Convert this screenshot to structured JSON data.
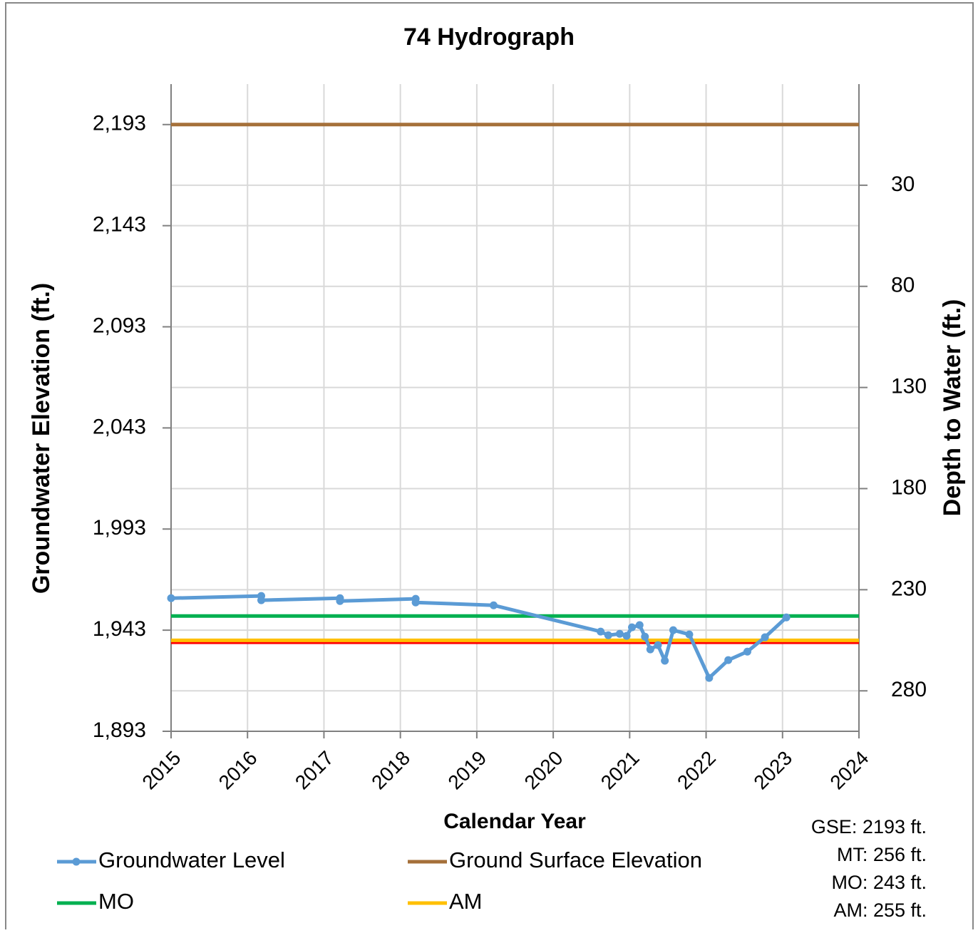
{
  "chart_data": {
    "type": "line",
    "title": "74 Hydrograph",
    "x_label": "Calendar Year",
    "y_label": "Groundwater Elevation (ft.)",
    "y2_label": "Depth to Water (ft.)",
    "xlim": [
      2015,
      2024
    ],
    "xticks": [
      2015,
      2016,
      2017,
      2018,
      2019,
      2020,
      2021,
      2022,
      2023,
      2024
    ],
    "ylim": [
      1893,
      2213
    ],
    "yticks": [
      {
        "value": 1893,
        "label": "1,893"
      },
      {
        "value": 1943,
        "label": "1,943"
      },
      {
        "value": 1993,
        "label": "1,993"
      },
      {
        "value": 2043,
        "label": "2,043"
      },
      {
        "value": 2093,
        "label": "2,093"
      },
      {
        "value": 2143,
        "label": "2,143"
      },
      {
        "value": 2193,
        "label": "2,193"
      }
    ],
    "y2lim": [
      300,
      -20
    ],
    "y2ticks": [
      30,
      80,
      130,
      180,
      230,
      280
    ],
    "grid": true,
    "series": [
      {
        "name": "Ground Surface Elevation",
        "color": "#a5703a",
        "x": [
          2015,
          2024
        ],
        "values": [
          2193,
          2193
        ]
      },
      {
        "name": "MT",
        "legend": false,
        "color": "#ff0000",
        "x": [
          2015,
          2024
        ],
        "values": [
          1937,
          1937
        ]
      },
      {
        "name": "AM",
        "color": "#ffc000",
        "x": [
          2015,
          2024
        ],
        "values": [
          1938,
          1938
        ]
      },
      {
        "name": "MO",
        "color": "#00b050",
        "x": [
          2015,
          2024
        ],
        "values": [
          1950,
          1950
        ]
      },
      {
        "name": "Groundwater Level",
        "color": "#5b9bd5",
        "markers": true,
        "x": [
          2015.0,
          2016.18,
          2016.18,
          2017.21,
          2017.21,
          2018.2,
          2018.2,
          2019.22,
          2020.62,
          2020.72,
          2020.87,
          2020.96,
          2021.03,
          2021.13,
          2021.2,
          2021.27,
          2021.37,
          2021.46,
          2021.57,
          2021.78,
          2022.04,
          2022.29,
          2022.54,
          2022.77,
          2023.05
        ],
        "values": [
          1958.8,
          1959.9,
          1957.8,
          1958.8,
          1957.4,
          1958.5,
          1956.7,
          1955.3,
          1942.3,
          1940.5,
          1941.2,
          1940.2,
          1944.4,
          1945.5,
          1939.8,
          1933.5,
          1935.6,
          1927.9,
          1943.0,
          1940.9,
          1919.4,
          1928.2,
          1932.4,
          1939.5,
          1949.3
        ]
      }
    ],
    "legend_order": [
      4,
      0,
      3,
      2
    ],
    "notes": [
      "GSE: 2193 ft.",
      "MT: 256 ft.",
      "MO: 243 ft.",
      "AM: 255 ft."
    ]
  }
}
